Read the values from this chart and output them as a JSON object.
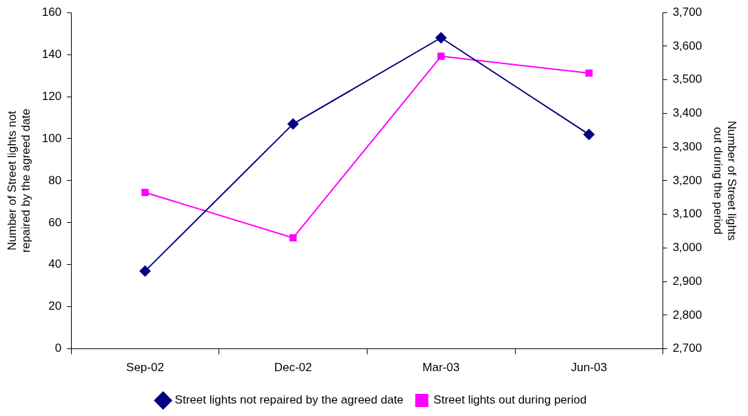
{
  "chart_data": {
    "type": "line",
    "categories": [
      "Sep-02",
      "Dec-02",
      "Mar-03",
      "Jun-03"
    ],
    "ylabel": "Number of Street lights not repaired by the agreed date",
    "y2label": "Number of Street lights out during the period",
    "ylim": [
      0,
      160
    ],
    "yticks": [
      0,
      20,
      40,
      60,
      80,
      100,
      120,
      140,
      160
    ],
    "y2lim": [
      2700,
      3700
    ],
    "y2ticks": [
      {
        "value": 2700,
        "label": "2,700"
      },
      {
        "value": 2800,
        "label": "2,800"
      },
      {
        "value": 2900,
        "label": "2,900"
      },
      {
        "value": 3000,
        "label": "3,000"
      },
      {
        "value": 3100,
        "label": "3,100"
      },
      {
        "value": 3200,
        "label": "3,200"
      },
      {
        "value": 3300,
        "label": "3,300"
      },
      {
        "value": 3400,
        "label": "3,400"
      },
      {
        "value": 3500,
        "label": "3,500"
      },
      {
        "value": 3600,
        "label": "3,600"
      },
      {
        "value": 3700,
        "label": "3,700"
      }
    ],
    "grid": false,
    "legend": "bottom",
    "series": [
      {
        "name": "Street lights not repaired by the agreed date",
        "color": "#000080",
        "marker": "diamond",
        "values": [
          37,
          107,
          148,
          102
        ]
      },
      {
        "name": "Street lights out during period",
        "color": "#ff00ff",
        "marker": "square",
        "axis": "y2",
        "values": [
          3165,
          3030,
          3570,
          3520
        ]
      }
    ]
  }
}
